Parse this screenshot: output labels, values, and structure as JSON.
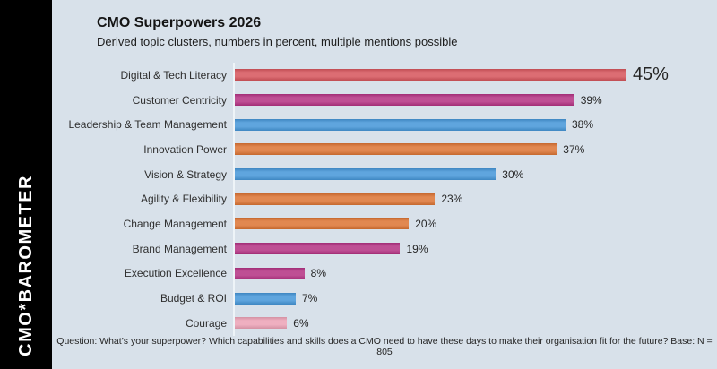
{
  "sidebar": {
    "brand": "CMO*BAROMETER"
  },
  "colors": {
    "background": "#d8e1ea",
    "sidebar_bg": "#000000",
    "sidebar_text": "#ffffff",
    "axis_line": "#eef4f8",
    "red": "#d6555c",
    "magenta": "#b43283",
    "blue": "#4596d8",
    "orange": "#dc7434",
    "pink": "#eca2b6"
  },
  "chart_data": {
    "type": "bar",
    "orientation": "horizontal",
    "title": "CMO Superpowers 2026",
    "subtitle": "Derived topic clusters, numbers in percent, multiple mentions possible",
    "note": "Question: What’s your superpower? Which capabilities and skills does a CMO need to have these days to make their organisation fit for the future? Base: N = 805",
    "categories": [
      "Digital & Tech Literacy",
      "Customer Centricity",
      "Leadership & Team Management",
      "Innovation Power",
      "Vision & Strategy",
      "Agility & Flexibility",
      "Change Management",
      "Brand Management",
      "Execution Excellence",
      "Budget & ROI",
      "Courage"
    ],
    "values": [
      45,
      39,
      38,
      37,
      30,
      23,
      20,
      19,
      8,
      7,
      6
    ],
    "value_labels": [
      "45%",
      "39%",
      "38%",
      "37%",
      "30%",
      "23%",
      "20%",
      "19%",
      "8%",
      "7%",
      "6%"
    ],
    "bar_colors": [
      "#d6555c",
      "#b43283",
      "#4596d8",
      "#dc7434",
      "#4596d8",
      "#dc7434",
      "#dc7434",
      "#b43283",
      "#b43283",
      "#4596d8",
      "#eca2b6"
    ],
    "emphasized_index": 0,
    "xlim": [
      0,
      47
    ],
    "unit": "percent",
    "grid": false,
    "legend": false
  }
}
